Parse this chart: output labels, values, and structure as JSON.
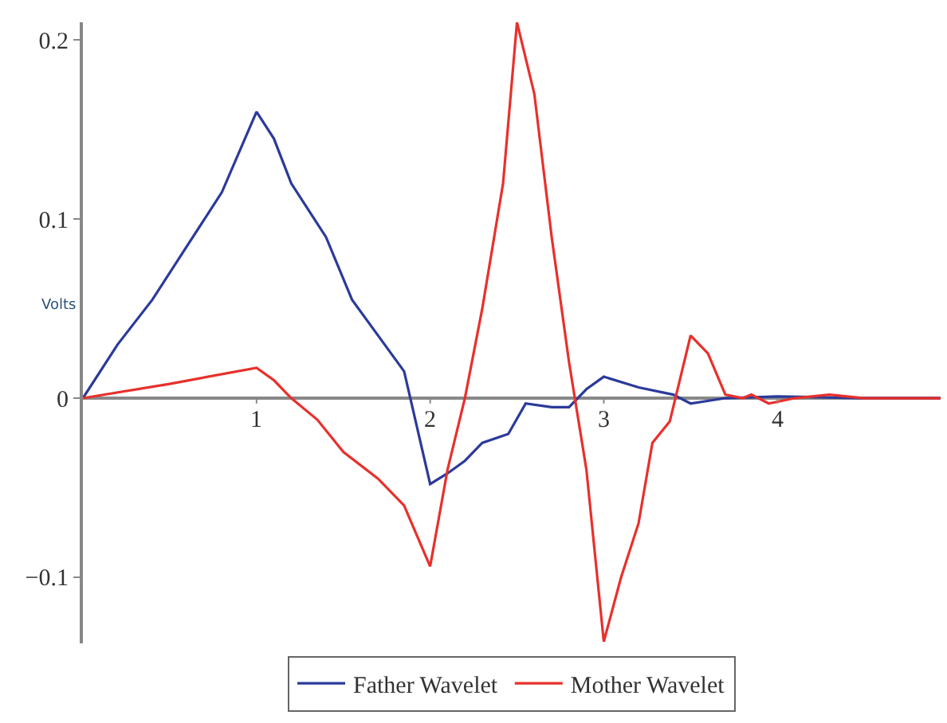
{
  "chart_data": {
    "type": "line",
    "ylabel": "Volts",
    "xlim": [
      0,
      4.94
    ],
    "xticks": [
      1,
      2,
      3,
      4
    ],
    "ylim": [
      -0.137,
      0.21
    ],
    "yticks": [
      {
        "value": -0.1,
        "label": "−0.1"
      },
      0,
      0.1,
      0.2
    ],
    "grid": false,
    "legend": "bottom",
    "marker": "none",
    "line_style": "solid",
    "series": [
      {
        "name": "Father Wavelet",
        "color": "#2b3a9a",
        "x": [
          0,
          0.2,
          0.4,
          0.6,
          0.8,
          1.0,
          1.1,
          1.2,
          1.4,
          1.55,
          1.7,
          1.85,
          2.0,
          2.1,
          2.2,
          2.3,
          2.45,
          2.55,
          2.7,
          2.8,
          2.9,
          3.0,
          3.2,
          3.4,
          3.5,
          3.7,
          4.0,
          4.5,
          4.94
        ],
        "values": [
          0,
          0.03,
          0.055,
          0.085,
          0.115,
          0.16,
          0.145,
          0.12,
          0.09,
          0.055,
          0.035,
          0.015,
          -0.048,
          -0.042,
          -0.035,
          -0.025,
          -0.02,
          -0.003,
          -0.005,
          -0.005,
          0.005,
          0.012,
          0.006,
          0.002,
          -0.003,
          0,
          0.001,
          0,
          0
        ]
      },
      {
        "name": "Mother Wavelet",
        "color": "#e8302c",
        "x": [
          0,
          0.5,
          1.0,
          1.1,
          1.2,
          1.35,
          1.5,
          1.7,
          1.85,
          2.0,
          2.1,
          2.2,
          2.3,
          2.42,
          2.5,
          2.6,
          2.7,
          2.8,
          2.9,
          3.0,
          3.1,
          3.2,
          3.28,
          3.38,
          3.45,
          3.5,
          3.6,
          3.7,
          3.8,
          3.85,
          3.95,
          4.1,
          4.3,
          4.5,
          4.94
        ],
        "values": [
          0,
          0.008,
          0.017,
          0.01,
          0,
          -0.012,
          -0.03,
          -0.045,
          -0.06,
          -0.094,
          -0.04,
          0.0,
          0.05,
          0.12,
          0.21,
          0.17,
          0.09,
          0.02,
          -0.04,
          -0.136,
          -0.1,
          -0.07,
          -0.025,
          -0.013,
          0.015,
          0.035,
          0.025,
          0.002,
          0,
          0.002,
          -0.003,
          0,
          0.002,
          0,
          0
        ]
      }
    ]
  }
}
